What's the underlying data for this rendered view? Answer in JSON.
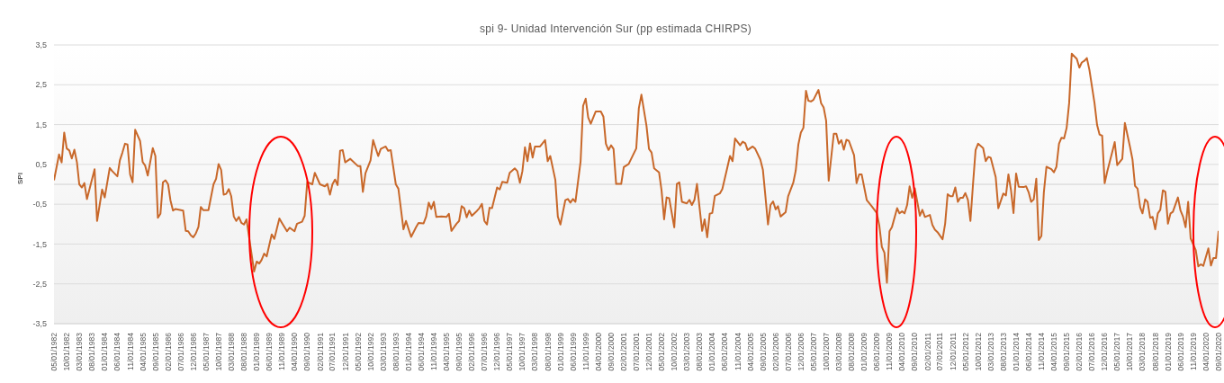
{
  "chart_data": {
    "type": "line",
    "title": "spi 9- Unidad Intervención Sur (pp estimada CHIRPS)",
    "ylabel": "SPI",
    "color": "#c8682a",
    "marker": "none",
    "grid": "y",
    "x": [
      "1982-05",
      "1982-07",
      "1982-08",
      "1982-09",
      "1982-10",
      "1982-11",
      "1982-12",
      "1983-01",
      "1983-02",
      "1983-03",
      "1983-04",
      "1983-05",
      "1983-06",
      "1983-09",
      "1983-10",
      "1983-12",
      "1984-01",
      "1984-03",
      "1984-04",
      "1984-06",
      "1984-07",
      "1984-08",
      "1984-09",
      "1984-10",
      "1984-11",
      "1984-12",
      "1985-01",
      "1985-03",
      "1985-04",
      "1985-05",
      "1985-06",
      "1985-08",
      "1985-09",
      "1985-10",
      "1985-11",
      "1985-12",
      "1986-01",
      "1986-02",
      "1986-03",
      "1986-04",
      "1986-05",
      "1986-08",
      "1986-09",
      "1986-10",
      "1986-11",
      "1986-12",
      "1987-01",
      "1987-02",
      "1987-03",
      "1987-04",
      "1987-06",
      "1987-08",
      "1987-09",
      "1987-10",
      "1987-11",
      "1987-12",
      "1988-01",
      "1988-02",
      "1988-03",
      "1988-04",
      "1988-05",
      "1988-06",
      "1988-07",
      "1988-08",
      "1988-09",
      "1988-10",
      "1988-12",
      "1989-01",
      "1989-02",
      "1989-03",
      "1989-04",
      "1989-05",
      "1989-07",
      "1989-08",
      "1989-10",
      "1989-11",
      "1990-01",
      "1990-02",
      "1990-04",
      "1990-05",
      "1990-07",
      "1990-08",
      "1990-09",
      "1990-11",
      "1990-12",
      "1991-02",
      "1991-04",
      "1991-05",
      "1991-06",
      "1991-07",
      "1991-08",
      "1991-09",
      "1991-10",
      "1991-11",
      "1991-12",
      "1992-02",
      "1992-05",
      "1992-06",
      "1992-07",
      "1992-08",
      "1992-10",
      "1992-11",
      "1993-01",
      "1993-02",
      "1993-04",
      "1993-05",
      "1993-06",
      "1993-08",
      "1993-09",
      "1993-11",
      "1993-12",
      "1994-02",
      "1994-04",
      "1994-05",
      "1994-07",
      "1994-08",
      "1994-09",
      "1994-10",
      "1994-11",
      "1994-12",
      "1995-02",
      "1995-04",
      "1995-05",
      "1995-06",
      "1995-08",
      "1995-09",
      "1995-10",
      "1995-11",
      "1995-12",
      "1996-01",
      "1996-02",
      "1996-04",
      "1996-05",
      "1996-06",
      "1996-07",
      "1996-08",
      "1996-09",
      "1996-10",
      "1996-12",
      "1997-01",
      "1997-02",
      "1997-04",
      "1997-05",
      "1997-07",
      "1997-08",
      "1997-09",
      "1997-10",
      "1997-11",
      "1997-12",
      "1998-01",
      "1998-02",
      "1998-03",
      "1998-05",
      "1998-07",
      "1998-08",
      "1998-09",
      "1998-11",
      "1998-12",
      "1999-01",
      "1999-03",
      "1999-04",
      "1999-05",
      "1999-06",
      "1999-07",
      "1999-09",
      "1999-10",
      "1999-11",
      "1999-12",
      "2000-01",
      "2000-03",
      "2000-05",
      "2000-06",
      "2000-07",
      "2000-08",
      "2000-09",
      "2000-10",
      "2000-11",
      "2001-01",
      "2001-02",
      "2001-04",
      "2001-05",
      "2001-07",
      "2001-08",
      "2001-09",
      "2001-11",
      "2001-12",
      "2002-01",
      "2002-02",
      "2002-04",
      "2002-05",
      "2002-06",
      "2002-07",
      "2002-08",
      "2002-10",
      "2002-11",
      "2002-12",
      "2003-01",
      "2003-03",
      "2003-04",
      "2003-05",
      "2003-06",
      "2003-07",
      "2003-09",
      "2003-10",
      "2003-11",
      "2003-12",
      "2004-01",
      "2004-02",
      "2004-04",
      "2004-05",
      "2004-07",
      "2004-08",
      "2004-09",
      "2004-10",
      "2004-12",
      "2005-01",
      "2005-02",
      "2005-03",
      "2005-05",
      "2005-06",
      "2005-08",
      "2005-09",
      "2005-10",
      "2005-11",
      "2005-12",
      "2006-01",
      "2006-02",
      "2006-03",
      "2006-04",
      "2006-06",
      "2006-07",
      "2006-09",
      "2006-10",
      "2006-11",
      "2006-12",
      "2007-01",
      "2007-02",
      "2007-03",
      "2007-04",
      "2007-05",
      "2007-07",
      "2007-08",
      "2007-09",
      "2007-10",
      "2007-11",
      "2008-01",
      "2008-02",
      "2008-03",
      "2008-04",
      "2008-05",
      "2008-06",
      "2008-07",
      "2008-09",
      "2008-10",
      "2008-11",
      "2008-12",
      "2009-02",
      "2009-04",
      "2009-06",
      "2009-07",
      "2009-08",
      "2009-09",
      "2009-10",
      "2009-11",
      "2009-12",
      "2010-02",
      "2010-03",
      "2010-04",
      "2010-05",
      "2010-06",
      "2010-07",
      "2010-08",
      "2010-09",
      "2010-10",
      "2010-11",
      "2010-12",
      "2011-01",
      "2011-03",
      "2011-04",
      "2011-05",
      "2011-06",
      "2011-08",
      "2011-09",
      "2011-10",
      "2011-11",
      "2011-12",
      "2012-01",
      "2012-02",
      "2012-03",
      "2012-04",
      "2012-05",
      "2012-06",
      "2012-07",
      "2012-08",
      "2012-09",
      "2012-10",
      "2012-12",
      "2013-01",
      "2013-02",
      "2013-03",
      "2013-05",
      "2013-06",
      "2013-08",
      "2013-09",
      "2013-10",
      "2013-11",
      "2013-12",
      "2014-01",
      "2014-02",
      "2014-04",
      "2014-05",
      "2014-06",
      "2014-07",
      "2014-08",
      "2014-09",
      "2014-10",
      "2014-11",
      "2014-12",
      "2015-01",
      "2015-03",
      "2015-04",
      "2015-05",
      "2015-06",
      "2015-07",
      "2015-08",
      "2015-09",
      "2015-10",
      "2015-11",
      "2016-01",
      "2016-02",
      "2016-03",
      "2016-04",
      "2016-05",
      "2016-06",
      "2016-08",
      "2016-09",
      "2016-10",
      "2016-11",
      "2016-12",
      "2017-01",
      "2017-03",
      "2017-04",
      "2017-05",
      "2017-07",
      "2017-08",
      "2017-10",
      "2017-11",
      "2017-12",
      "2018-01",
      "2018-02",
      "2018-03",
      "2018-04",
      "2018-05",
      "2018-06",
      "2018-07",
      "2018-08",
      "2018-09",
      "2018-10",
      "2018-11",
      "2018-12",
      "2019-01",
      "2019-02",
      "2019-03",
      "2019-05",
      "2019-06",
      "2019-07",
      "2019-08",
      "2019-09",
      "2019-10",
      "2019-12",
      "2020-01",
      "2020-02",
      "2020-03",
      "2020-05",
      "2020-06",
      "2020-07",
      "2020-08",
      "2020-09"
    ],
    "values": [
      0.1,
      0.75,
      0.55,
      1.3,
      0.9,
      0.85,
      0.65,
      0.87,
      0.55,
      0.0,
      -0.08,
      0.03,
      -0.37,
      0.38,
      -0.92,
      -0.13,
      -0.33,
      0.41,
      0.33,
      0.2,
      0.6,
      0.8,
      1.02,
      1.0,
      0.25,
      0.05,
      1.37,
      1.09,
      0.56,
      0.47,
      0.22,
      0.91,
      0.71,
      -0.84,
      -0.74,
      0.05,
      0.1,
      0.0,
      -0.4,
      -0.66,
      -0.62,
      -0.66,
      -1.17,
      -1.18,
      -1.28,
      -1.33,
      -1.23,
      -1.07,
      -0.57,
      -0.65,
      -0.65,
      0.0,
      0.14,
      0.51,
      0.36,
      -0.26,
      -0.24,
      -0.12,
      -0.3,
      -0.81,
      -0.92,
      -0.82,
      -0.97,
      -1.01,
      -0.88,
      -1.32,
      -2.19,
      -1.94,
      -1.99,
      -1.9,
      -1.74,
      -1.81,
      -1.26,
      -1.37,
      -0.86,
      -0.97,
      -1.18,
      -1.09,
      -1.18,
      -0.99,
      -0.94,
      -0.79,
      0.06,
      0.0,
      0.29,
      0.0,
      -0.05,
      0.01,
      -0.26,
      0.0,
      0.12,
      -0.02,
      0.84,
      0.86,
      0.55,
      0.64,
      0.46,
      0.46,
      -0.19,
      0.28,
      0.6,
      1.11,
      0.71,
      0.89,
      0.95,
      0.84,
      0.86,
      0.0,
      -0.11,
      -1.13,
      -0.92,
      -1.32,
      -1.08,
      -0.97,
      -0.98,
      -0.81,
      -0.46,
      -0.62,
      -0.44,
      -0.82,
      -0.81,
      -0.82,
      -0.74,
      -1.17,
      -0.99,
      -0.92,
      -0.55,
      -0.6,
      -0.83,
      -0.66,
      -0.79,
      -0.67,
      -0.6,
      -0.49,
      -0.92,
      -1.01,
      -0.59,
      -0.6,
      -0.08,
      -0.13,
      0.06,
      0.04,
      0.29,
      0.4,
      0.33,
      0.04,
      0.33,
      0.93,
      0.58,
      1.03,
      0.67,
      0.95,
      0.95,
      1.11,
      0.58,
      0.71,
      0.11,
      -0.81,
      -1.01,
      -0.4,
      -0.37,
      -0.46,
      -0.37,
      -0.44,
      0.58,
      1.97,
      2.15,
      1.68,
      1.52,
      1.83,
      1.83,
      1.7,
      1.02,
      0.86,
      0.98,
      0.89,
      0.01,
      0.01,
      0.43,
      0.51,
      0.64,
      0.9,
      1.91,
      2.25,
      1.47,
      0.89,
      0.8,
      0.4,
      0.3,
      -0.15,
      -0.88,
      -0.33,
      -0.35,
      -1.08,
      0.01,
      0.05,
      -0.44,
      -0.48,
      -0.39,
      -0.52,
      -0.39,
      0.01,
      -1.17,
      -0.88,
      -1.33,
      -0.74,
      -0.72,
      -0.29,
      -0.23,
      -0.12,
      0.43,
      0.71,
      0.58,
      1.15,
      0.98,
      1.07,
      1.03,
      0.86,
      0.95,
      0.89,
      0.62,
      0.36,
      -0.3,
      -1.01,
      -0.52,
      -0.43,
      -0.63,
      -0.55,
      -0.81,
      -0.7,
      -0.3,
      0.04,
      0.35,
      1.0,
      1.3,
      1.42,
      2.35,
      2.1,
      2.08,
      2.12,
      2.37,
      2.04,
      1.93,
      1.6,
      0.09,
      1.27,
      1.27,
      1.02,
      1.11,
      0.87,
      1.12,
      1.09,
      0.73,
      0.03,
      0.25,
      0.25,
      -0.4,
      -0.55,
      -0.72,
      -1.03,
      -1.57,
      -1.72,
      -2.47,
      -1.18,
      -1.07,
      -0.6,
      -0.73,
      -0.68,
      -0.73,
      -0.52,
      -0.05,
      -0.34,
      -0.1,
      -0.44,
      -0.79,
      -0.64,
      -0.82,
      -0.77,
      -1.02,
      -1.14,
      -1.2,
      -1.38,
      -0.99,
      -0.25,
      -0.3,
      -0.3,
      -0.08,
      -0.44,
      -0.34,
      -0.34,
      -0.22,
      -0.39,
      -0.92,
      0.0,
      0.86,
      1.02,
      0.91,
      0.58,
      0.69,
      0.67,
      0.18,
      -0.6,
      -0.23,
      -0.28,
      0.25,
      -0.15,
      -0.72,
      0.27,
      -0.06,
      -0.07,
      -0.05,
      -0.2,
      -0.44,
      -0.38,
      0.14,
      -1.4,
      -1.3,
      -0.2,
      0.44,
      0.38,
      0.3,
      0.44,
      1.02,
      1.17,
      1.15,
      1.42,
      2.04,
      3.28,
      3.15,
      2.93,
      3.06,
      3.1,
      3.17,
      2.87,
      2.04,
      1.49,
      1.25,
      1.22,
      0.03,
      0.32,
      0.8,
      1.06,
      0.48,
      0.64,
      1.54,
      0.95,
      0.62,
      -0.04,
      -0.11,
      -0.58,
      -0.73,
      -0.38,
      -0.44,
      -0.84,
      -0.82,
      -1.13,
      -0.73,
      -0.64,
      -0.15,
      -0.19,
      -0.99,
      -0.73,
      -0.69,
      -0.33,
      -0.66,
      -0.81,
      -1.08,
      -0.44,
      -1.36,
      -1.65,
      -2.06,
      -2.01,
      -2.05,
      -1.61,
      -2.04,
      -1.85,
      -1.85,
      -1.17
    ],
    "xlim": [
      "1982-05",
      "2020-09"
    ],
    "xticks": [
      {
        "value": "1982-05",
        "label": "05/01/1982"
      },
      {
        "value": "1982-10",
        "label": "10/01/1982"
      },
      {
        "value": "1983-03",
        "label": "03/01/1983"
      },
      {
        "value": "1983-08",
        "label": "08/01/1983"
      },
      {
        "value": "1984-01",
        "label": "01/01/1984"
      },
      {
        "value": "1984-06",
        "label": "06/01/1984"
      },
      {
        "value": "1984-11",
        "label": "11/01/1984"
      },
      {
        "value": "1985-04",
        "label": "04/01/1985"
      },
      {
        "value": "1985-09",
        "label": "09/01/1985"
      },
      {
        "value": "1986-02",
        "label": "02/01/1986"
      },
      {
        "value": "1986-07",
        "label": "07/01/1986"
      },
      {
        "value": "1986-12",
        "label": "12/01/1986"
      },
      {
        "value": "1987-05",
        "label": "05/01/1987"
      },
      {
        "value": "1987-10",
        "label": "10/01/1987"
      },
      {
        "value": "1988-03",
        "label": "03/01/1988"
      },
      {
        "value": "1988-08",
        "label": "08/01/1988"
      },
      {
        "value": "1989-01",
        "label": "01/01/1989"
      },
      {
        "value": "1989-06",
        "label": "06/01/1989"
      },
      {
        "value": "1989-11",
        "label": "11/01/1989"
      },
      {
        "value": "1990-04",
        "label": "04/01/1990"
      },
      {
        "value": "1990-09",
        "label": "09/01/1990"
      },
      {
        "value": "1991-02",
        "label": "02/01/1991"
      },
      {
        "value": "1991-07",
        "label": "07/01/1991"
      },
      {
        "value": "1991-12",
        "label": "12/01/1991"
      },
      {
        "value": "1992-05",
        "label": "05/01/1992"
      },
      {
        "value": "1992-10",
        "label": "10/01/1992"
      },
      {
        "value": "1993-03",
        "label": "03/01/1993"
      },
      {
        "value": "1993-08",
        "label": "08/01/1993"
      },
      {
        "value": "1994-01",
        "label": "01/01/1994"
      },
      {
        "value": "1994-06",
        "label": "06/01/1994"
      },
      {
        "value": "1994-11",
        "label": "11/01/1994"
      },
      {
        "value": "1995-04",
        "label": "04/01/1995"
      },
      {
        "value": "1995-09",
        "label": "09/01/1995"
      },
      {
        "value": "1996-02",
        "label": "02/01/1996"
      },
      {
        "value": "1996-07",
        "label": "07/01/1996"
      },
      {
        "value": "1996-12",
        "label": "12/01/1996"
      },
      {
        "value": "1997-05",
        "label": "05/01/1997"
      },
      {
        "value": "1997-10",
        "label": "10/01/1997"
      },
      {
        "value": "1998-03",
        "label": "03/01/1998"
      },
      {
        "value": "1998-08",
        "label": "08/01/1998"
      },
      {
        "value": "1999-01",
        "label": "01/01/1999"
      },
      {
        "value": "1999-06",
        "label": "06/01/1999"
      },
      {
        "value": "1999-11",
        "label": "11/01/1999"
      },
      {
        "value": "2000-04",
        "label": "04/01/2000"
      },
      {
        "value": "2000-09",
        "label": "09/01/2000"
      },
      {
        "value": "2001-02",
        "label": "02/01/2001"
      },
      {
        "value": "2001-07",
        "label": "07/01/2001"
      },
      {
        "value": "2001-12",
        "label": "12/01/2001"
      },
      {
        "value": "2002-05",
        "label": "05/01/2002"
      },
      {
        "value": "2002-10",
        "label": "10/01/2002"
      },
      {
        "value": "2003-03",
        "label": "03/01/2003"
      },
      {
        "value": "2003-08",
        "label": "08/01/2003"
      },
      {
        "value": "2004-01",
        "label": "01/01/2004"
      },
      {
        "value": "2004-06",
        "label": "06/01/2004"
      },
      {
        "value": "2004-11",
        "label": "11/01/2004"
      },
      {
        "value": "2005-04",
        "label": "04/01/2005"
      },
      {
        "value": "2005-09",
        "label": "09/01/2005"
      },
      {
        "value": "2006-02",
        "label": "02/01/2006"
      },
      {
        "value": "2006-07",
        "label": "07/01/2006"
      },
      {
        "value": "2006-12",
        "label": "12/01/2006"
      },
      {
        "value": "2007-05",
        "label": "05/01/2007"
      },
      {
        "value": "2007-10",
        "label": "10/01/2007"
      },
      {
        "value": "2008-03",
        "label": "03/01/2008"
      },
      {
        "value": "2008-08",
        "label": "08/01/2008"
      },
      {
        "value": "2009-01",
        "label": "01/01/2009"
      },
      {
        "value": "2009-06",
        "label": "06/01/2009"
      },
      {
        "value": "2009-11",
        "label": "11/01/2009"
      },
      {
        "value": "2010-04",
        "label": "04/01/2010"
      },
      {
        "value": "2010-09",
        "label": "09/01/2010"
      },
      {
        "value": "2011-02",
        "label": "02/01/2011"
      },
      {
        "value": "2011-07",
        "label": "07/01/2011"
      },
      {
        "value": "2011-12",
        "label": "12/01/2011"
      },
      {
        "value": "2012-05",
        "label": "05/01/2012"
      },
      {
        "value": "2012-10",
        "label": "10/01/2012"
      },
      {
        "value": "2013-03",
        "label": "03/01/2013"
      },
      {
        "value": "2013-08",
        "label": "08/01/2013"
      },
      {
        "value": "2014-01",
        "label": "01/01/2014"
      },
      {
        "value": "2014-06",
        "label": "06/01/2014"
      },
      {
        "value": "2014-11",
        "label": "11/01/2014"
      },
      {
        "value": "2015-04",
        "label": "04/01/2015"
      },
      {
        "value": "2015-09",
        "label": "09/01/2015"
      },
      {
        "value": "2016-02",
        "label": "02/01/2016"
      },
      {
        "value": "2016-07",
        "label": "07/01/2016"
      },
      {
        "value": "2016-12",
        "label": "12/01/2016"
      },
      {
        "value": "2017-05",
        "label": "05/01/2017"
      },
      {
        "value": "2017-10",
        "label": "10/01/2017"
      },
      {
        "value": "2018-03",
        "label": "03/01/2018"
      },
      {
        "value": "2018-08",
        "label": "08/01/2018"
      },
      {
        "value": "2019-01",
        "label": "01/01/2019"
      },
      {
        "value": "2019-06",
        "label": "06/01/2019"
      },
      {
        "value": "2019-11",
        "label": "11/01/2019"
      },
      {
        "value": "2020-04",
        "label": "04/01/2020"
      },
      {
        "value": "2020-09",
        "label": "09/01/2020"
      }
    ],
    "ylim": [
      -3.5,
      3.5
    ],
    "yticks": [
      {
        "value": -3.5,
        "label": "-3,5"
      },
      {
        "value": -2.5,
        "label": "-2,5"
      },
      {
        "value": -1.5,
        "label": "-1,5"
      },
      {
        "value": -0.5,
        "label": "-0,5"
      },
      {
        "value": 0.5,
        "label": "0,5"
      },
      {
        "value": 1.5,
        "label": "1,5"
      },
      {
        "value": 2.5,
        "label": "2,5"
      },
      {
        "value": 3.5,
        "label": "3,5"
      }
    ],
    "ref_lines": [
      {
        "axis": "y",
        "value": 0,
        "color": "#d0d0d0"
      }
    ]
  }
}
